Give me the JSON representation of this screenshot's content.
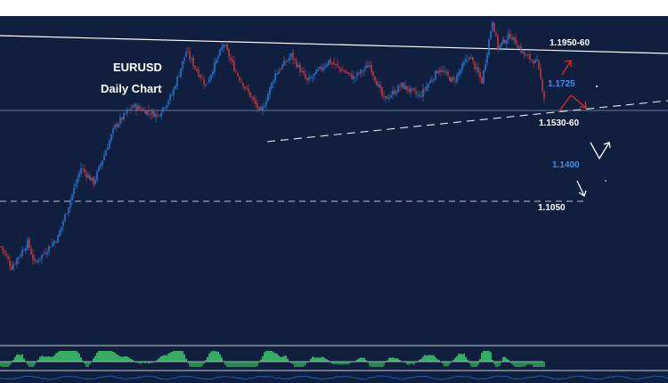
{
  "colors": {
    "background": "#0f1f3d",
    "up_candle": "#2f7fe0",
    "down_candle": "#d83a3a",
    "level_text": "#ffffff",
    "target_text": "#3b8ff0",
    "osc_green": "#3ecf6a",
    "osc_grey": "#c9ccd3",
    "arrow_red": "#e02b2b",
    "arrow_white": "#ffffff"
  },
  "chart_data": {
    "type": "candlestick",
    "title": "EURUSD",
    "subtitle": "Daily Chart",
    "ylim": [
      1.03,
      1.205
    ],
    "grid": false,
    "levels": [
      {
        "label": "1.1950-60",
        "kind": "resistance"
      },
      {
        "label": "1.1725",
        "kind": "target"
      },
      {
        "label": "1.1530-60",
        "kind": "support"
      },
      {
        "label": "1.1400",
        "kind": "target"
      },
      {
        "label": "1.1050",
        "kind": "support"
      }
    ],
    "trendlines": [
      "descending resistance",
      "ascending support"
    ],
    "indicator": "oscillator (green histogram)",
    "path_points": [
      {
        "bar": 0,
        "price": 1.082
      },
      {
        "bar": 6,
        "price": 1.071
      },
      {
        "bar": 15,
        "price": 1.084
      },
      {
        "bar": 19,
        "price": 1.073
      },
      {
        "bar": 32,
        "price": 1.087
      },
      {
        "bar": 45,
        "price": 1.124
      },
      {
        "bar": 52,
        "price": 1.116
      },
      {
        "bar": 64,
        "price": 1.146
      },
      {
        "bar": 74,
        "price": 1.157
      },
      {
        "bar": 88,
        "price": 1.152
      },
      {
        "bar": 96,
        "price": 1.163
      },
      {
        "bar": 104,
        "price": 1.186
      },
      {
        "bar": 115,
        "price": 1.168
      },
      {
        "bar": 125,
        "price": 1.19
      },
      {
        "bar": 132,
        "price": 1.175
      },
      {
        "bar": 146,
        "price": 1.153
      },
      {
        "bar": 154,
        "price": 1.174
      },
      {
        "bar": 163,
        "price": 1.184
      },
      {
        "bar": 172,
        "price": 1.17
      },
      {
        "bar": 184,
        "price": 1.181
      },
      {
        "bar": 198,
        "price": 1.172
      },
      {
        "bar": 207,
        "price": 1.179
      },
      {
        "bar": 215,
        "price": 1.16
      },
      {
        "bar": 225,
        "price": 1.168
      },
      {
        "bar": 235,
        "price": 1.162
      },
      {
        "bar": 246,
        "price": 1.177
      },
      {
        "bar": 254,
        "price": 1.17
      },
      {
        "bar": 263,
        "price": 1.184
      },
      {
        "bar": 270,
        "price": 1.17
      },
      {
        "bar": 276,
        "price": 1.203
      },
      {
        "bar": 279,
        "price": 1.188
      },
      {
        "bar": 286,
        "price": 1.195
      },
      {
        "bar": 294,
        "price": 1.184
      },
      {
        "bar": 301,
        "price": 1.18
      },
      {
        "bar": 305,
        "price": 1.162
      }
    ]
  }
}
